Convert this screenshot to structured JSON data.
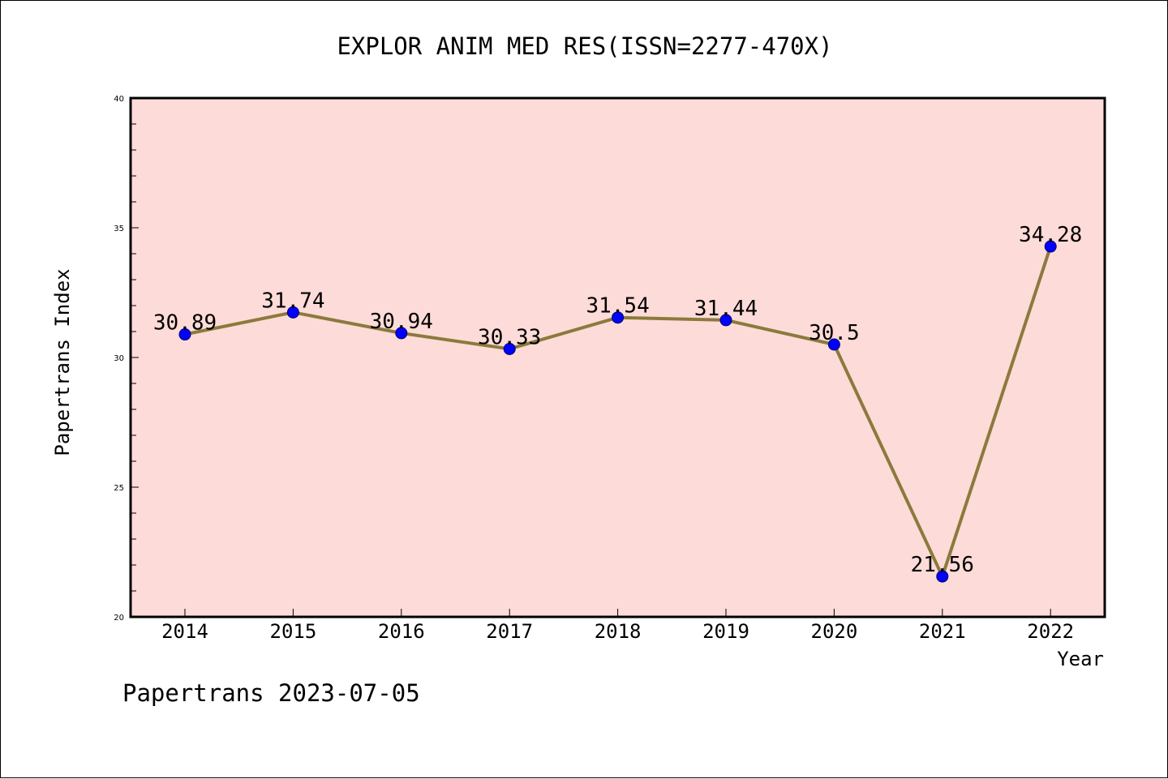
{
  "chart_data": {
    "type": "line",
    "title": "EXPLOR ANIM MED RES(ISSN=2277-470X)",
    "xlabel": "Year",
    "ylabel": "Papertrans Index",
    "categories": [
      "2014",
      "2015",
      "2016",
      "2017",
      "2018",
      "2019",
      "2020",
      "2021",
      "2022"
    ],
    "series": [
      {
        "values": [
          30.89,
          31.74,
          30.94,
          30.33,
          31.54,
          31.44,
          30.5,
          21.56,
          34.28
        ],
        "labels": [
          "30.89",
          "31.74",
          "30.94",
          "30.33",
          "31.54",
          "31.44",
          "30.5",
          "21.56",
          "34.28"
        ]
      }
    ],
    "ylim": [
      20,
      40
    ],
    "yticks": [
      "20",
      "25",
      "30",
      "35",
      "40"
    ],
    "grid": false,
    "colors": {
      "plot_background": "#fddbd8",
      "line": "#8b7a3c",
      "marker": "#0000ff"
    }
  },
  "footer": "Papertrans 2023-07-05"
}
